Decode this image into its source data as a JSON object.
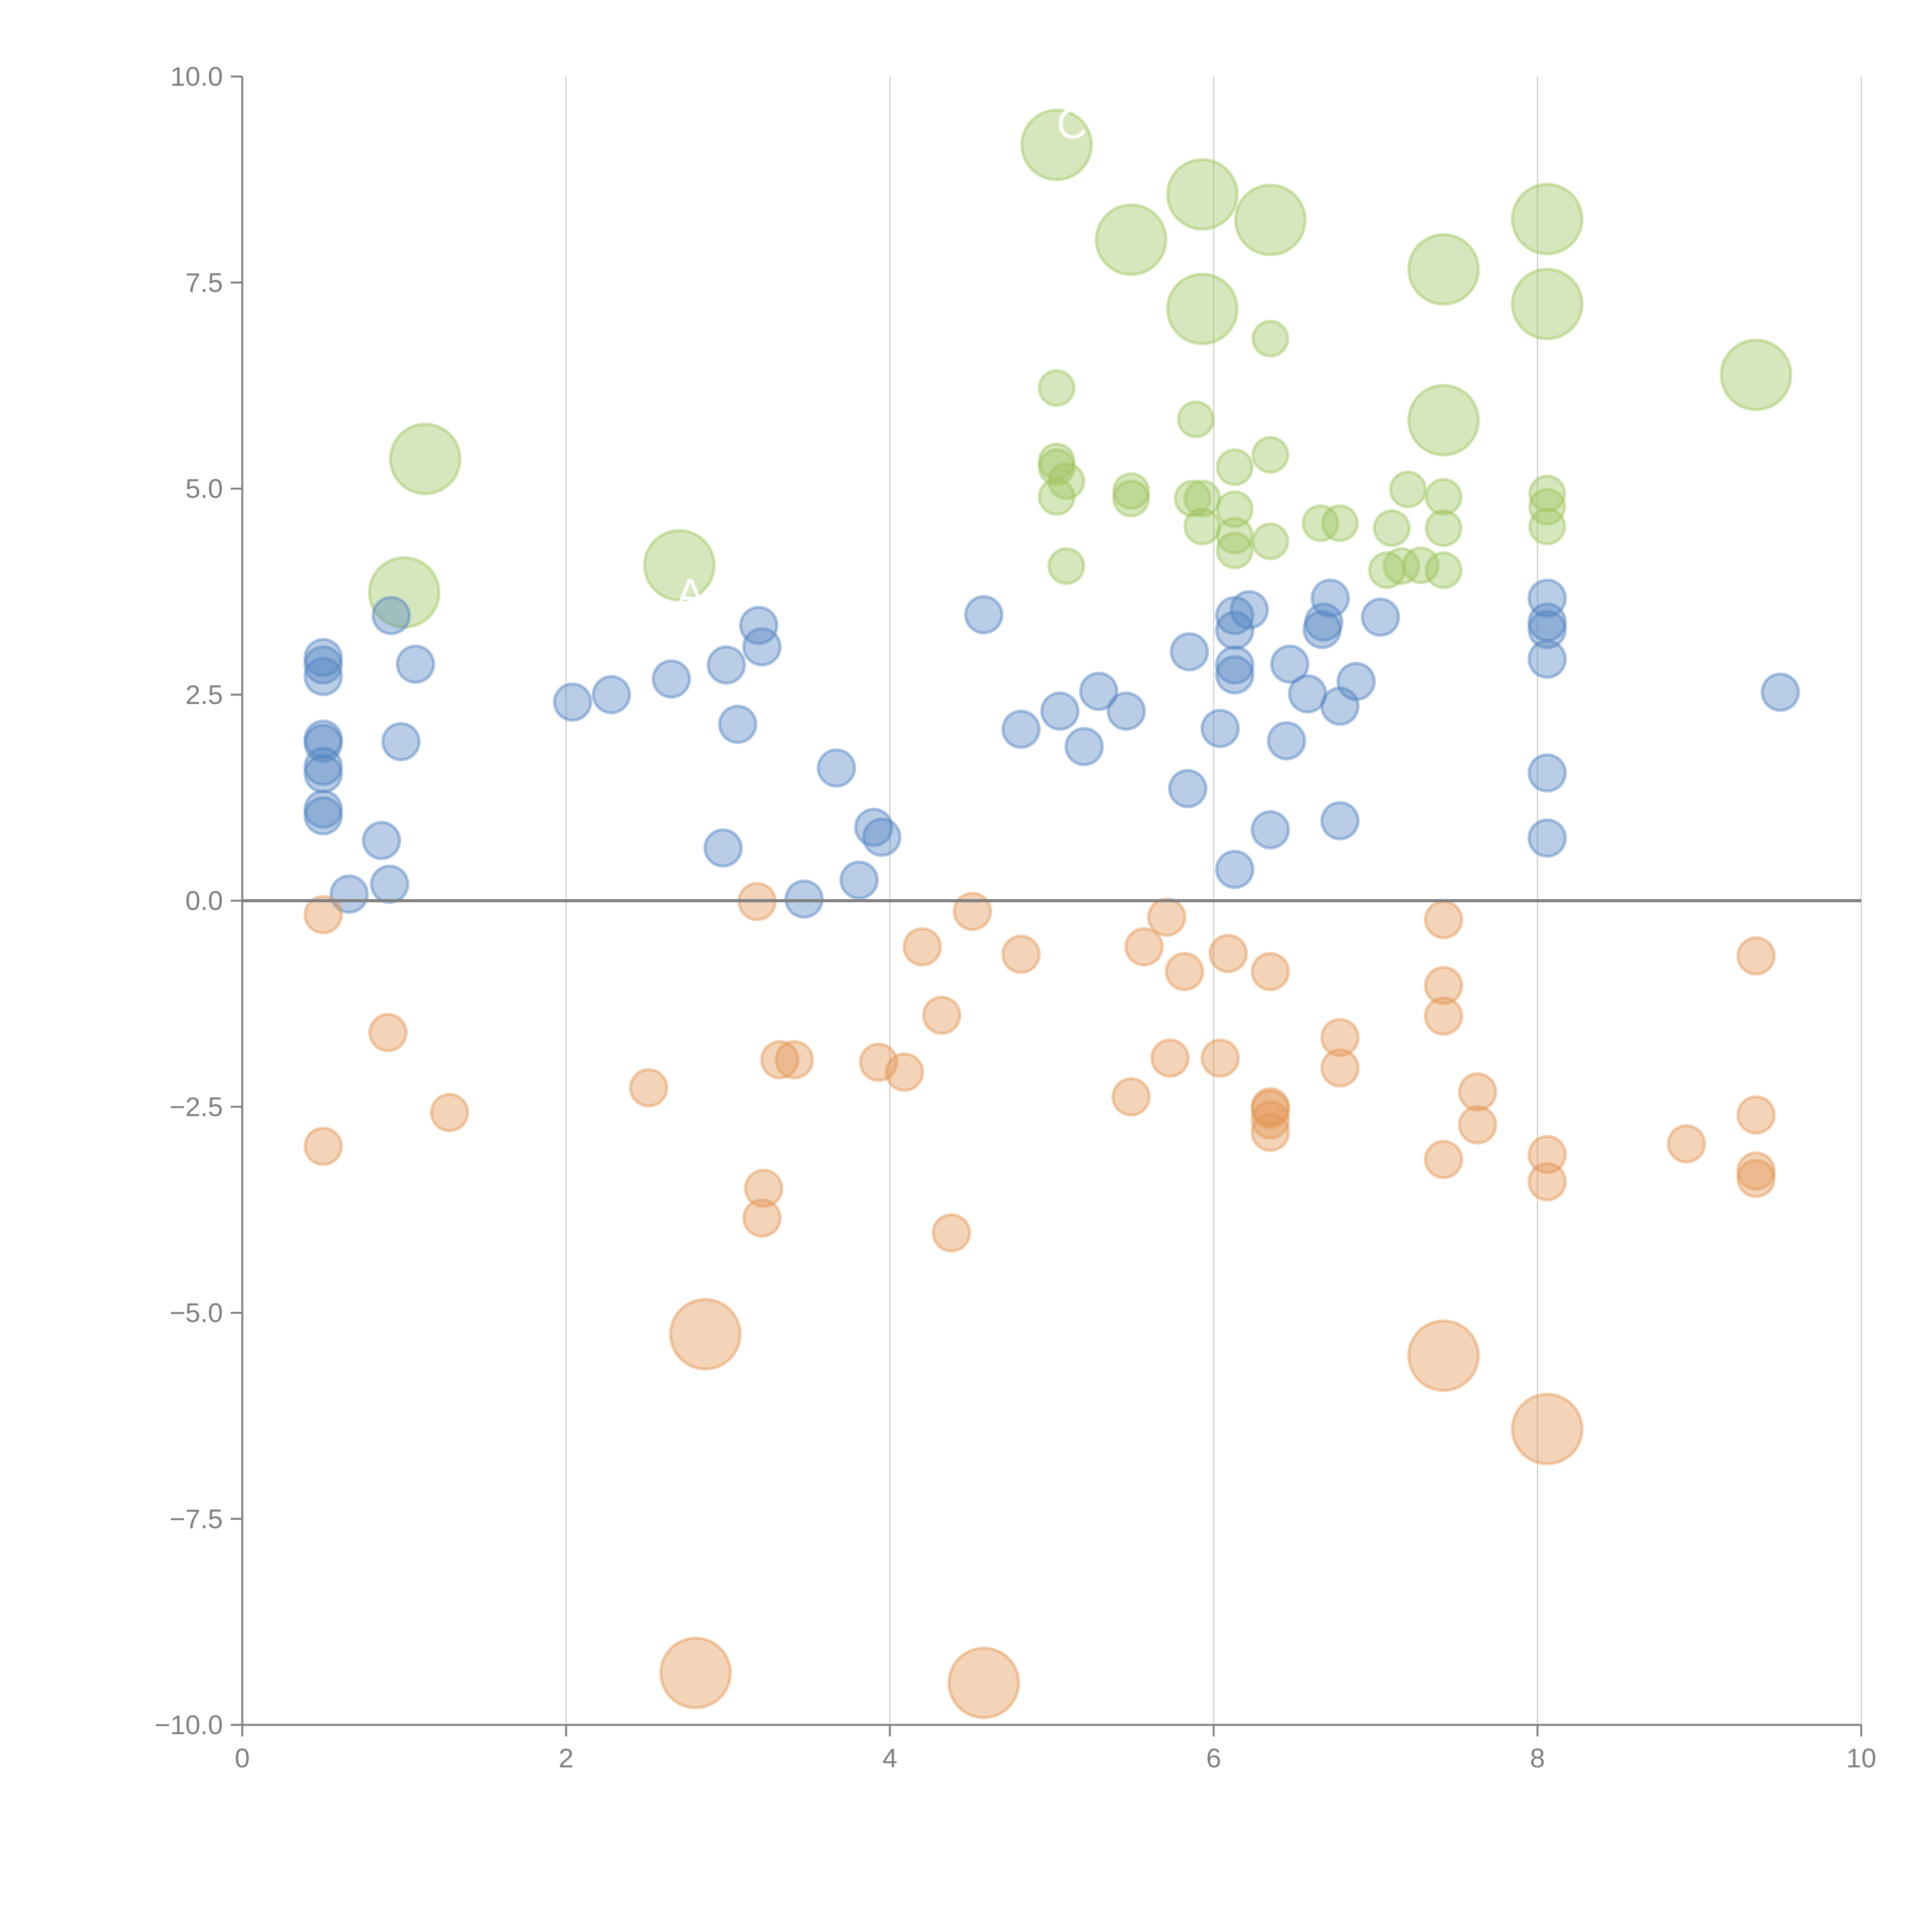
{
  "chart_data": {
    "type": "scatter",
    "title": "",
    "xlabel": "",
    "ylabel": "",
    "xlim": [
      0,
      10
    ],
    "ylim": [
      -10,
      10
    ],
    "xticks": [
      "0",
      "2",
      "4",
      "6",
      "8",
      "10"
    ],
    "xtick_values": [
      0,
      2,
      4,
      6,
      8,
      10
    ],
    "yticks": [
      "10.0",
      "7.5",
      "5.0",
      "2.5",
      "0.0",
      "−2.5",
      "−5.0",
      "−7.5",
      "−10.0"
    ],
    "ytick_values": [
      10,
      7.5,
      5,
      2.5,
      0,
      -2.5,
      -5,
      -7.5,
      -10
    ],
    "grid": "vertical",
    "reference_line_y": 0,
    "legend": "none",
    "group_labels": [
      "A",
      "C"
    ],
    "series": [
      {
        "name": "green",
        "color": "#9bc35a",
        "points": [
          {
            "x": 1.13,
            "y": 5.36,
            "size": "large"
          },
          {
            "x": 1.0,
            "y": 3.74,
            "size": "large"
          },
          {
            "x": 2.7,
            "y": 4.07,
            "size": "large"
          },
          {
            "x": 5.03,
            "y": 9.17,
            "size": "large"
          },
          {
            "x": 5.49,
            "y": 8.02,
            "size": "large"
          },
          {
            "x": 5.93,
            "y": 8.57,
            "size": "large"
          },
          {
            "x": 6.35,
            "y": 8.26,
            "size": "large"
          },
          {
            "x": 5.93,
            "y": 7.18,
            "size": "large"
          },
          {
            "x": 7.42,
            "y": 7.66,
            "size": "large"
          },
          {
            "x": 7.42,
            "y": 5.83,
            "size": "large"
          },
          {
            "x": 8.06,
            "y": 8.27,
            "size": "large"
          },
          {
            "x": 8.06,
            "y": 7.24,
            "size": "large"
          },
          {
            "x": 9.35,
            "y": 6.38,
            "size": "large"
          },
          {
            "x": 6.35,
            "y": 6.82,
            "size": "small"
          },
          {
            "x": 5.03,
            "y": 6.22,
            "size": "small"
          },
          {
            "x": 5.89,
            "y": 5.84,
            "size": "small"
          },
          {
            "x": 5.03,
            "y": 5.33,
            "size": "small"
          },
          {
            "x": 5.03,
            "y": 5.26,
            "size": "small"
          },
          {
            "x": 5.09,
            "y": 5.09,
            "size": "small"
          },
          {
            "x": 5.03,
            "y": 4.9,
            "size": "small"
          },
          {
            "x": 5.49,
            "y": 4.97,
            "size": "small"
          },
          {
            "x": 5.49,
            "y": 4.88,
            "size": "small"
          },
          {
            "x": 5.87,
            "y": 4.88,
            "size": "small"
          },
          {
            "x": 5.93,
            "y": 4.88,
            "size": "small"
          },
          {
            "x": 5.93,
            "y": 4.54,
            "size": "small"
          },
          {
            "x": 6.13,
            "y": 5.26,
            "size": "small"
          },
          {
            "x": 6.35,
            "y": 5.41,
            "size": "small"
          },
          {
            "x": 6.13,
            "y": 4.75,
            "size": "small"
          },
          {
            "x": 6.13,
            "y": 4.43,
            "size": "small"
          },
          {
            "x": 6.13,
            "y": 4.25,
            "size": "small"
          },
          {
            "x": 6.35,
            "y": 4.36,
            "size": "small"
          },
          {
            "x": 5.09,
            "y": 4.06,
            "size": "small"
          },
          {
            "x": 6.66,
            "y": 4.58,
            "size": "small"
          },
          {
            "x": 6.78,
            "y": 4.58,
            "size": "small"
          },
          {
            "x": 7.2,
            "y": 4.99,
            "size": "small"
          },
          {
            "x": 7.42,
            "y": 4.9,
            "size": "small"
          },
          {
            "x": 7.1,
            "y": 4.52,
            "size": "small"
          },
          {
            "x": 7.42,
            "y": 4.52,
            "size": "small"
          },
          {
            "x": 7.07,
            "y": 4.01,
            "size": "small"
          },
          {
            "x": 7.16,
            "y": 4.06,
            "size": "small"
          },
          {
            "x": 7.28,
            "y": 4.07,
            "size": "small"
          },
          {
            "x": 7.42,
            "y": 4.01,
            "size": "small"
          },
          {
            "x": 8.06,
            "y": 4.94,
            "size": "small"
          },
          {
            "x": 8.06,
            "y": 4.78,
            "size": "small"
          },
          {
            "x": 8.06,
            "y": 4.54,
            "size": "small"
          }
        ]
      },
      {
        "name": "blue",
        "color": "#4f81c1",
        "points": [
          {
            "x": 0.5,
            "y": 2.95
          },
          {
            "x": 0.5,
            "y": 2.86
          },
          {
            "x": 0.5,
            "y": 2.72
          },
          {
            "x": 0.5,
            "y": 1.96
          },
          {
            "x": 0.5,
            "y": 1.91
          },
          {
            "x": 0.5,
            "y": 1.63
          },
          {
            "x": 0.5,
            "y": 1.54
          },
          {
            "x": 0.5,
            "y": 1.11
          },
          {
            "x": 0.5,
            "y": 1.03
          },
          {
            "x": 0.92,
            "y": 3.46
          },
          {
            "x": 1.07,
            "y": 2.87
          },
          {
            "x": 0.98,
            "y": 1.93
          },
          {
            "x": 0.86,
            "y": 0.73
          },
          {
            "x": 0.66,
            "y": 0.08
          },
          {
            "x": 0.91,
            "y": 0.2
          },
          {
            "x": 2.04,
            "y": 2.41
          },
          {
            "x": 2.28,
            "y": 2.5
          },
          {
            "x": 2.65,
            "y": 2.69
          },
          {
            "x": 3.19,
            "y": 3.34
          },
          {
            "x": 3.21,
            "y": 3.08
          },
          {
            "x": 2.99,
            "y": 2.86
          },
          {
            "x": 3.06,
            "y": 2.14
          },
          {
            "x": 2.97,
            "y": 0.64
          },
          {
            "x": 3.47,
            "y": 0.02
          },
          {
            "x": 3.67,
            "y": 1.61
          },
          {
            "x": 3.81,
            "y": 0.25
          },
          {
            "x": 3.9,
            "y": 0.89
          },
          {
            "x": 3.95,
            "y": 0.77
          },
          {
            "x": 4.58,
            "y": 3.47
          },
          {
            "x": 4.81,
            "y": 2.08
          },
          {
            "x": 5.05,
            "y": 2.3
          },
          {
            "x": 5.2,
            "y": 1.87
          },
          {
            "x": 5.29,
            "y": 2.54
          },
          {
            "x": 5.46,
            "y": 2.3
          },
          {
            "x": 5.85,
            "y": 3.02
          },
          {
            "x": 5.84,
            "y": 1.36
          },
          {
            "x": 6.04,
            "y": 2.09
          },
          {
            "x": 6.13,
            "y": 3.46
          },
          {
            "x": 6.13,
            "y": 3.28
          },
          {
            "x": 6.13,
            "y": 2.86
          },
          {
            "x": 6.13,
            "y": 2.74
          },
          {
            "x": 6.22,
            "y": 3.53
          },
          {
            "x": 6.13,
            "y": 0.38
          },
          {
            "x": 6.35,
            "y": 0.86
          },
          {
            "x": 6.45,
            "y": 1.94
          },
          {
            "x": 6.47,
            "y": 2.87
          },
          {
            "x": 6.58,
            "y": 2.51
          },
          {
            "x": 6.67,
            "y": 3.29
          },
          {
            "x": 6.68,
            "y": 3.38
          },
          {
            "x": 6.72,
            "y": 3.67
          },
          {
            "x": 6.78,
            "y": 2.36
          },
          {
            "x": 6.88,
            "y": 2.66
          },
          {
            "x": 6.78,
            "y": 0.97
          },
          {
            "x": 7.03,
            "y": 3.44
          },
          {
            "x": 8.06,
            "y": 3.67
          },
          {
            "x": 8.06,
            "y": 3.38
          },
          {
            "x": 8.06,
            "y": 3.29
          },
          {
            "x": 8.06,
            "y": 2.93
          },
          {
            "x": 8.06,
            "y": 1.55
          },
          {
            "x": 8.06,
            "y": 0.76
          },
          {
            "x": 9.5,
            "y": 2.53
          }
        ]
      },
      {
        "name": "orange",
        "color": "#e39451",
        "points": [
          {
            "x": 0.5,
            "y": -0.17,
            "size": "small"
          },
          {
            "x": 0.9,
            "y": -1.6,
            "size": "small"
          },
          {
            "x": 0.5,
            "y": -2.98,
            "size": "small"
          },
          {
            "x": 1.28,
            "y": -2.57,
            "size": "small"
          },
          {
            "x": 2.51,
            "y": -2.27,
            "size": "small"
          },
          {
            "x": 3.18,
            "y": -0.01,
            "size": "small"
          },
          {
            "x": 3.32,
            "y": -1.93,
            "size": "small"
          },
          {
            "x": 3.41,
            "y": -1.93,
            "size": "small"
          },
          {
            "x": 3.22,
            "y": -3.49,
            "size": "small"
          },
          {
            "x": 3.21,
            "y": -3.85,
            "size": "small"
          },
          {
            "x": 3.93,
            "y": -1.96,
            "size": "small"
          },
          {
            "x": 4.09,
            "y": -2.08,
            "size": "small"
          },
          {
            "x": 4.2,
            "y": -0.56,
            "size": "small"
          },
          {
            "x": 4.32,
            "y": -1.39,
            "size": "small"
          },
          {
            "x": 4.38,
            "y": -4.03,
            "size": "small"
          },
          {
            "x": 4.51,
            "y": -0.13,
            "size": "small"
          },
          {
            "x": 4.81,
            "y": -0.65,
            "size": "small"
          },
          {
            "x": 5.49,
            "y": -2.38,
            "size": "small"
          },
          {
            "x": 5.57,
            "y": -0.56,
            "size": "small"
          },
          {
            "x": 5.71,
            "y": -0.2,
            "size": "small"
          },
          {
            "x": 5.73,
            "y": -1.91,
            "size": "small"
          },
          {
            "x": 5.82,
            "y": -0.86,
            "size": "small"
          },
          {
            "x": 6.04,
            "y": -1.91,
            "size": "small"
          },
          {
            "x": 6.09,
            "y": -0.64,
            "size": "small"
          },
          {
            "x": 6.35,
            "y": -0.86,
            "size": "small"
          },
          {
            "x": 6.35,
            "y": -2.5,
            "size": "small"
          },
          {
            "x": 6.35,
            "y": -2.53,
            "size": "small"
          },
          {
            "x": 6.35,
            "y": -2.66,
            "size": "small"
          },
          {
            "x": 6.35,
            "y": -2.81,
            "size": "small"
          },
          {
            "x": 6.78,
            "y": -1.66,
            "size": "small"
          },
          {
            "x": 6.78,
            "y": -2.03,
            "size": "small"
          },
          {
            "x": 7.42,
            "y": -0.23,
            "size": "small"
          },
          {
            "x": 7.42,
            "y": -1.03,
            "size": "small"
          },
          {
            "x": 7.42,
            "y": -1.4,
            "size": "small"
          },
          {
            "x": 7.42,
            "y": -3.14,
            "size": "small"
          },
          {
            "x": 7.63,
            "y": -2.32,
            "size": "small"
          },
          {
            "x": 7.63,
            "y": -2.72,
            "size": "small"
          },
          {
            "x": 8.06,
            "y": -3.08,
            "size": "small"
          },
          {
            "x": 8.06,
            "y": -3.41,
            "size": "small"
          },
          {
            "x": 8.92,
            "y": -2.95,
            "size": "small"
          },
          {
            "x": 9.35,
            "y": -0.67,
            "size": "small"
          },
          {
            "x": 9.35,
            "y": -2.6,
            "size": "small"
          },
          {
            "x": 9.35,
            "y": -3.28,
            "size": "small"
          },
          {
            "x": 9.35,
            "y": -3.37,
            "size": "small"
          },
          {
            "x": 2.86,
            "y": -5.26,
            "size": "large"
          },
          {
            "x": 2.8,
            "y": -9.37,
            "size": "large"
          },
          {
            "x": 4.58,
            "y": -9.49,
            "size": "large"
          },
          {
            "x": 7.42,
            "y": -5.52,
            "size": "large"
          },
          {
            "x": 8.06,
            "y": -6.41,
            "size": "large"
          }
        ]
      }
    ]
  }
}
